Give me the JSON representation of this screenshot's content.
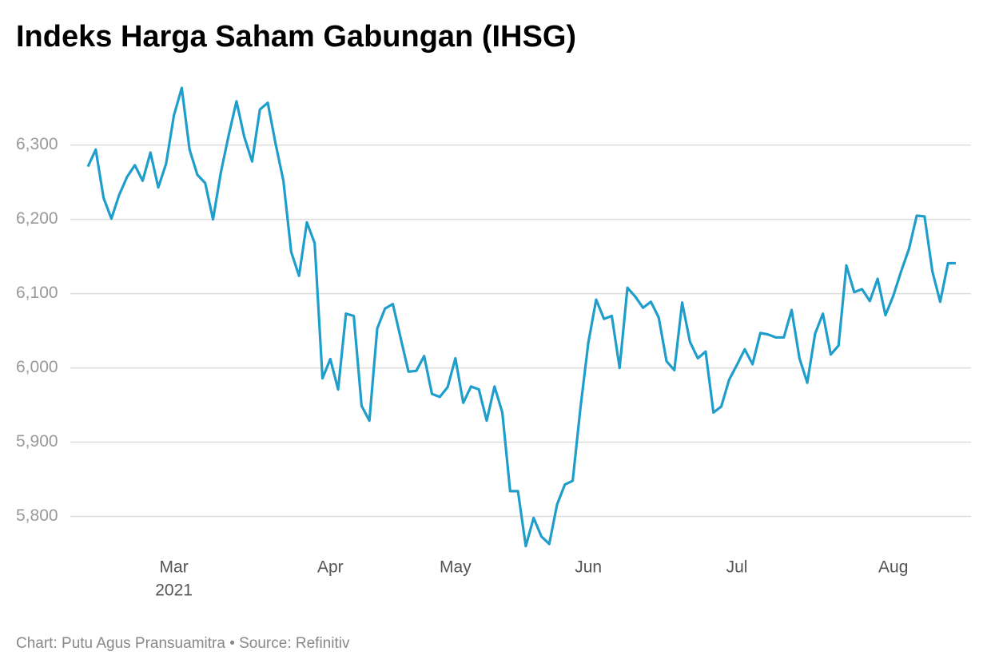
{
  "chart_data": {
    "type": "line",
    "title": "Indeks Harga Saham Gabungan (IHSG)",
    "footer": "Chart: Putu Agus Pransuamitra • Source: Refinitiv",
    "year_label": "2021",
    "categories": [
      null,
      null,
      null,
      null,
      null,
      null,
      null,
      null,
      null,
      null,
      null,
      "Mar",
      null,
      null,
      null,
      null,
      null,
      null,
      null,
      null,
      null,
      null,
      null,
      null,
      null,
      null,
      null,
      null,
      null,
      null,
      null,
      "Apr",
      null,
      null,
      null,
      null,
      null,
      null,
      null,
      null,
      null,
      null,
      null,
      null,
      null,
      null,
      null,
      "May",
      null,
      null,
      null,
      null,
      null,
      null,
      null,
      null,
      null,
      null,
      null,
      null,
      null,
      null,
      null,
      null,
      "Jun",
      null,
      null,
      null,
      null,
      null,
      null,
      null,
      null,
      null,
      null,
      null,
      null,
      null,
      null,
      null,
      null,
      null,
      null,
      "Jul",
      null,
      null,
      null,
      null,
      null,
      null,
      null,
      null,
      null,
      null,
      null,
      null,
      null,
      null,
      null,
      null,
      null,
      null,
      null,
      "Aug",
      null,
      null,
      null,
      null,
      null,
      null,
      null,
      null
    ],
    "series": [
      {
        "name": "IHSG",
        "color": "#1f9ecb",
        "values": [
          6271,
          6294,
          6229,
          6201,
          6233,
          6257,
          6273,
          6252,
          6290,
          6243,
          6275,
          6340,
          6377,
          6294,
          6260,
          6249,
          6200,
          6263,
          6313,
          6359,
          6311,
          6278,
          6348,
          6357,
          6302,
          6252,
          6156,
          6124,
          6196,
          6168,
          5986,
          6012,
          5971,
          6073,
          6070,
          5949,
          5929,
          6053,
          6080,
          6086,
          6040,
          5995,
          5996,
          6016,
          5965,
          5961,
          5974,
          6013,
          5953,
          5975,
          5971,
          5929,
          5975,
          5940,
          5834,
          5834,
          5760,
          5798,
          5773,
          5763,
          5816,
          5843,
          5848,
          5947,
          6034,
          6092,
          6066,
          6070,
          6000,
          6108,
          6096,
          6081,
          6089,
          6068,
          6009,
          5997,
          6088,
          6035,
          6013,
          6022,
          5940,
          5948,
          5984,
          6004,
          6025,
          6005,
          6047,
          6045,
          6041,
          6041,
          6078,
          6013,
          5980,
          6046,
          6073,
          6018,
          6030,
          6138,
          6102,
          6106,
          6090,
          6120,
          6071,
          6097,
          6130,
          6160,
          6205,
          6204,
          6130,
          6089,
          6141,
          6141
        ]
      }
    ],
    "ylim": [
      5750,
      6390
    ],
    "yticks": [
      {
        "value": 5800,
        "label": "5,800"
      },
      {
        "value": 5900,
        "label": "5,900"
      },
      {
        "value": 6000,
        "label": "6,000"
      },
      {
        "value": 6100,
        "label": "6,100"
      },
      {
        "value": 6200,
        "label": "6,200"
      },
      {
        "value": 6300,
        "label": "6,300"
      }
    ],
    "grid": true
  }
}
